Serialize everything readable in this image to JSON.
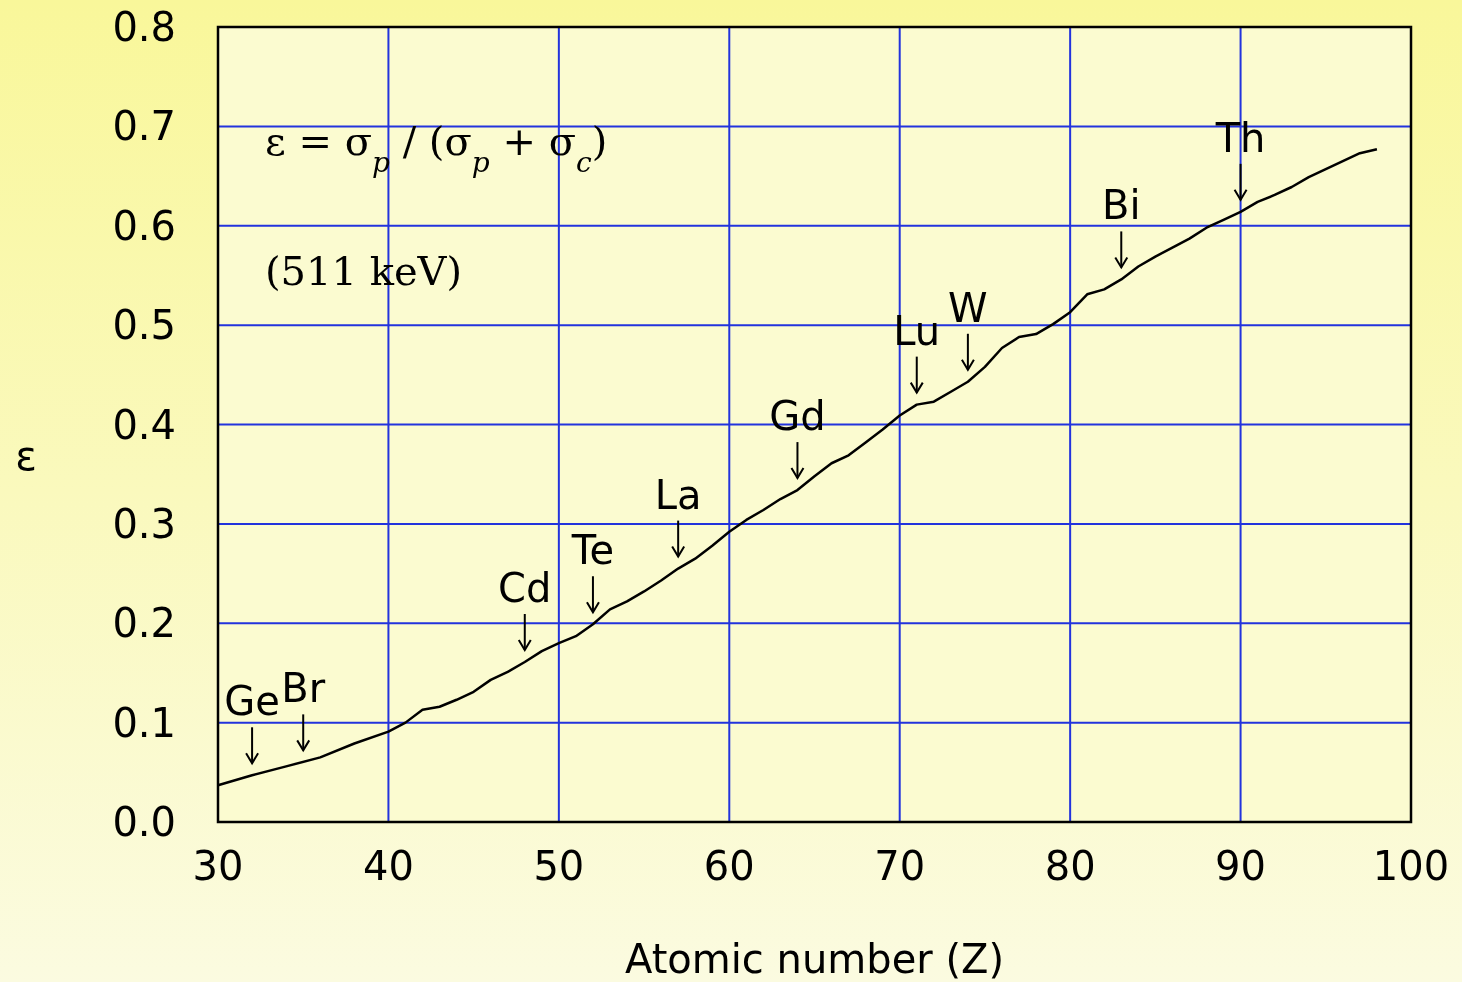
{
  "chart_data": {
    "type": "line",
    "xlabel": "Atomic number (Z)",
    "ylabel": "ε",
    "x": [
      30,
      32,
      34,
      36,
      38,
      40,
      41,
      42,
      43,
      44,
      45,
      46,
      47,
      48,
      49,
      50,
      51,
      52,
      53,
      54,
      55,
      56,
      57,
      58,
      59,
      60,
      61,
      62,
      63,
      64,
      65,
      66,
      67,
      68,
      69,
      70,
      71,
      72,
      73,
      74,
      75,
      76,
      77,
      78,
      79,
      80,
      81,
      82,
      83,
      84,
      85,
      86,
      87,
      88,
      89,
      90,
      91,
      92,
      93,
      94,
      95,
      96,
      97,
      98
    ],
    "series": [
      {
        "color": "#000000",
        "values": [
          0.037,
          0.047,
          0.056,
          0.065,
          0.079,
          0.091,
          0.1,
          0.113,
          0.116,
          0.123,
          0.131,
          0.143,
          0.151,
          0.161,
          0.172,
          0.18,
          0.187,
          0.199,
          0.214,
          0.222,
          0.232,
          0.243,
          0.255,
          0.265,
          0.278,
          0.292,
          0.304,
          0.314,
          0.325,
          0.334,
          0.348,
          0.361,
          0.369,
          0.382,
          0.395,
          0.409,
          0.42,
          0.423,
          0.433,
          0.443,
          0.458,
          0.477,
          0.488,
          0.491,
          0.501,
          0.513,
          0.531,
          0.536,
          0.546,
          0.559,
          0.569,
          0.578,
          0.587,
          0.598,
          0.606,
          0.614,
          0.624,
          0.631,
          0.639,
          0.649,
          0.657,
          0.665,
          0.673,
          0.677
        ]
      }
    ],
    "xlim": [
      30,
      100
    ],
    "xticks": [
      30,
      40,
      50,
      60,
      70,
      80,
      90,
      100
    ],
    "ylim": [
      0,
      0.8
    ],
    "yticks": [
      {
        "value": 0,
        "label": "0.0"
      },
      0.1,
      0.2,
      0.3,
      0.4,
      0.5,
      0.6,
      0.7,
      0.8
    ],
    "grid": true,
    "marker": "none",
    "line_style": "solid",
    "annotations": [
      "ε = σ$_{p}$ / (σ$_{p}$ + σ$_{c}$)",
      "(511 keV)",
      {
        "text": "Ge",
        "x": 32,
        "y": 0.047
      },
      {
        "text": "Br",
        "x": 35,
        "y": 0.06
      },
      {
        "text": "Cd",
        "x": 48,
        "y": 0.161
      },
      {
        "text": "Te",
        "x": 52,
        "y": 0.199
      },
      {
        "text": "La",
        "x": 57,
        "y": 0.255
      },
      {
        "text": "Gd",
        "x": 64,
        "y": 0.334
      },
      {
        "text": "Lu",
        "x": 71,
        "y": 0.42
      },
      {
        "text": "W",
        "x": 74,
        "y": 0.443
      },
      {
        "text": "Bi",
        "x": 83,
        "y": 0.546
      },
      {
        "text": "Th",
        "x": 90,
        "y": 0.614
      }
    ]
  }
}
